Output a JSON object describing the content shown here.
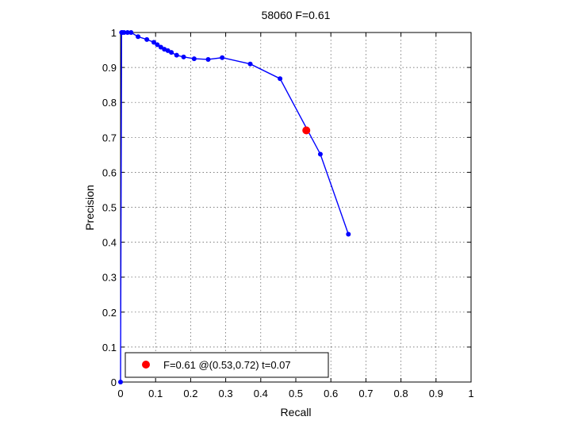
{
  "chart_data": {
    "type": "line",
    "title": "58060 F=0.61",
    "xlabel": "Recall",
    "ylabel": "Precision",
    "xlim": [
      0,
      1
    ],
    "ylim": [
      0,
      1
    ],
    "x_ticks": [
      "0",
      "0.1",
      "0.2",
      "0.3",
      "0.4",
      "0.5",
      "0.6",
      "0.7",
      "0.8",
      "0.9",
      "1"
    ],
    "y_ticks": [
      "0",
      "0.1",
      "0.2",
      "0.3",
      "0.4",
      "0.5",
      "0.6",
      "0.7",
      "0.8",
      "0.9",
      "1"
    ],
    "grid": true,
    "legend_position": "bottom-left",
    "series": [
      {
        "color": "#0000ff",
        "marker": "dot",
        "x": [
          0.0,
          0.003,
          0.005,
          0.01,
          0.02,
          0.03,
          0.05,
          0.075,
          0.095,
          0.105,
          0.115,
          0.125,
          0.135,
          0.145,
          0.16,
          0.18,
          0.21,
          0.25,
          0.29,
          0.37,
          0.455,
          0.57,
          0.65
        ],
        "y": [
          0.0,
          1.0,
          1.0,
          1.0,
          1.0,
          1.0,
          0.988,
          0.98,
          0.972,
          0.965,
          0.958,
          0.952,
          0.948,
          0.943,
          0.935,
          0.93,
          0.925,
          0.923,
          0.928,
          0.91,
          0.868,
          0.652,
          0.423
        ]
      }
    ],
    "best_point": {
      "x": 0.53,
      "y": 0.72,
      "color": "#ff0000",
      "label": "F=0.61 @(0.53,0.72) t=0.07"
    }
  }
}
